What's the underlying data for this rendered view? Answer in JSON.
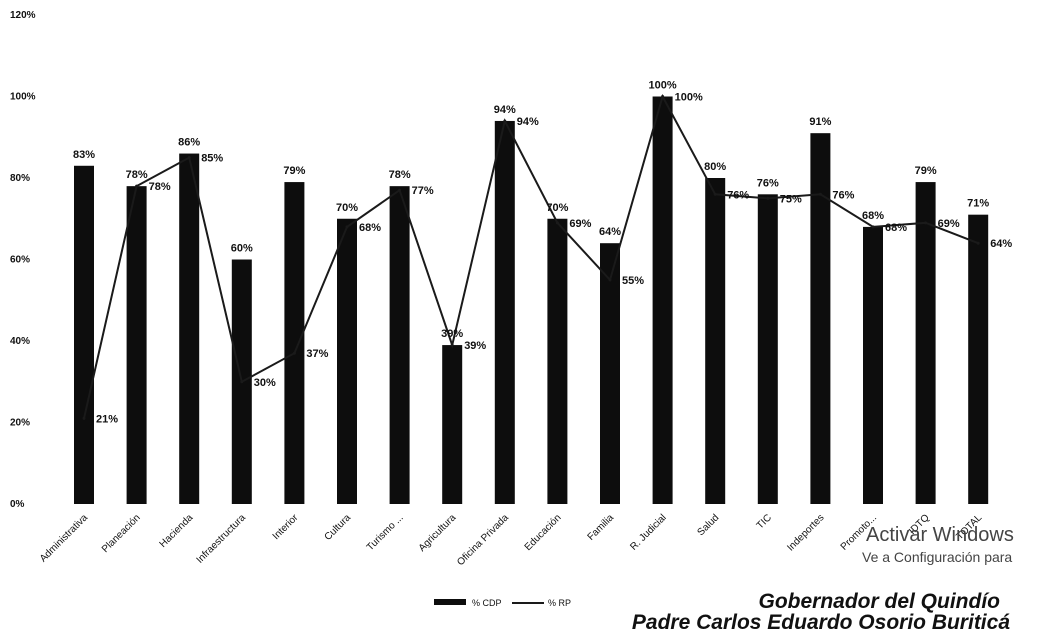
{
  "chart_data": {
    "type": "bar",
    "categories": [
      "Administrativa",
      "Planeación",
      "Hacienda",
      "Infraestructura",
      "Interior",
      "Cultura",
      "Turismo ...",
      "Agricultura",
      "Oficina Privada",
      "Educación",
      "Familia",
      "R. Judicial",
      "Salud",
      "TIC",
      "Indeportes",
      "Promoto...",
      "IDTQ",
      "TOTAL"
    ],
    "series": [
      {
        "name": "% CDP",
        "type": "bar",
        "values": [
          83,
          78,
          86,
          60,
          79,
          70,
          78,
          39,
          94,
          70,
          64,
          100,
          80,
          76,
          91,
          68,
          79,
          71
        ],
        "labels": [
          "83%",
          "78%",
          "86%",
          "60%",
          "79%",
          "70%",
          "78%",
          "39%",
          "94%",
          "70%",
          "64%",
          "100%",
          "80%",
          "76%",
          "91%",
          "68%",
          "79%",
          "71%"
        ]
      },
      {
        "name": "% RP",
        "type": "line",
        "values": [
          21,
          78,
          85,
          30,
          37,
          68,
          77,
          39,
          94,
          69,
          55,
          100,
          76,
          75,
          76,
          68,
          69,
          64
        ],
        "labels": [
          "21%",
          "78%",
          "85%",
          "30%",
          "37%",
          "68%",
          "77%",
          "39%",
          "94%",
          "69%",
          "55%",
          "100%",
          "76%",
          "75%",
          "76%",
          "68%",
          "69%",
          "64%"
        ]
      }
    ],
    "yticks": [
      "0%",
      "20%",
      "40%",
      "60%",
      "80%",
      "100%",
      "120%"
    ],
    "ylim": [
      0,
      120
    ],
    "legend": "bottom"
  },
  "legend_labels": {
    "cdp": "% CDP",
    "rp": "% RP"
  },
  "watermark": {
    "line1": "Activar Windows",
    "line2": "Ve a Configuración para"
  },
  "signature": {
    "line1": "Gobernador del Quindío",
    "line2": "Padre Carlos Eduardo Osorio Buriticá"
  },
  "colors": {
    "bar": "#0d0d0d",
    "line": "#1a1a1a"
  }
}
